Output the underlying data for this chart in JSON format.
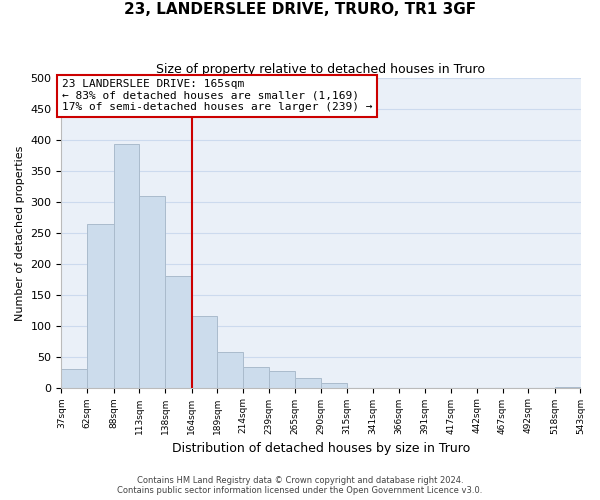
{
  "title": "23, LANDERSLEE DRIVE, TRURO, TR1 3GF",
  "subtitle": "Size of property relative to detached houses in Truro",
  "xlabel": "Distribution of detached houses by size in Truro",
  "ylabel": "Number of detached properties",
  "bar_color": "#ccdcec",
  "bar_edge_color": "#aabbcc",
  "bins": [
    37,
    62,
    88,
    113,
    138,
    164,
    189,
    214,
    239,
    265,
    290,
    315,
    341,
    366,
    391,
    417,
    442,
    467,
    492,
    518,
    543
  ],
  "counts": [
    30,
    265,
    393,
    309,
    181,
    116,
    58,
    33,
    26,
    15,
    7,
    0,
    0,
    0,
    0,
    0,
    0,
    0,
    0,
    1
  ],
  "reference_line_x": 164,
  "reference_line_color": "#cc0000",
  "ylim": [
    0,
    500
  ],
  "yticks": [
    0,
    50,
    100,
    150,
    200,
    250,
    300,
    350,
    400,
    450,
    500
  ],
  "annotation_line1": "23 LANDERSLEE DRIVE: 165sqm",
  "annotation_line2": "← 83% of detached houses are smaller (1,169)",
  "annotation_line3": "17% of semi-detached houses are larger (239) →",
  "annotation_box_color": "#ffffff",
  "annotation_box_edge_color": "#cc0000",
  "footnote1": "Contains HM Land Registry data © Crown copyright and database right 2024.",
  "footnote2": "Contains public sector information licensed under the Open Government Licence v3.0.",
  "grid_color": "#ccdaee",
  "background_color": "#eaf0f8"
}
